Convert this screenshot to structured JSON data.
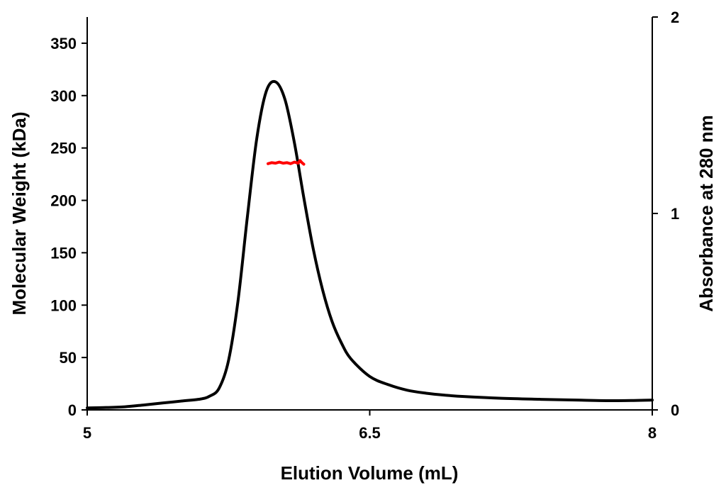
{
  "chart_data": {
    "type": "line",
    "xlabel": "Elution Volume (mL)",
    "ylabel_left": "Molecular Weight (kDa)",
    "ylabel_right": "Absorbance at 280 nm",
    "xlim": [
      5,
      8
    ],
    "ylim_left": [
      0,
      375
    ],
    "ylim_right": [
      0,
      2
    ],
    "x_ticks": [
      "5",
      "6.5",
      "8"
    ],
    "y_left_ticks": [
      "0",
      "50",
      "100",
      "150",
      "200",
      "250",
      "300",
      "350"
    ],
    "y_right_ticks": [
      "0",
      "1",
      "2"
    ],
    "grid": false,
    "legend": "none",
    "colors": {
      "absorbance": "#000000",
      "molecular_weight": "#ff0000"
    },
    "series": [
      {
        "axis": "right",
        "x": [
          5.0,
          5.1,
          5.2,
          5.3,
          5.4,
          5.5,
          5.6,
          5.65,
          5.7,
          5.75,
          5.8,
          5.85,
          5.9,
          5.95,
          6.0,
          6.05,
          6.1,
          6.15,
          6.2,
          6.25,
          6.3,
          6.35,
          6.4,
          6.5,
          6.6,
          6.7,
          6.8,
          6.9,
          7.0,
          7.2,
          7.4,
          7.6,
          7.8,
          8.0
        ],
        "y": [
          0.01,
          0.012,
          0.016,
          0.025,
          0.035,
          0.045,
          0.055,
          0.07,
          0.11,
          0.25,
          0.55,
          0.98,
          1.38,
          1.62,
          1.67,
          1.58,
          1.36,
          1.08,
          0.82,
          0.61,
          0.45,
          0.34,
          0.26,
          0.17,
          0.128,
          0.1,
          0.085,
          0.075,
          0.068,
          0.059,
          0.054,
          0.05,
          0.047,
          0.05
        ]
      },
      {
        "axis": "left",
        "x": [
          5.96,
          5.98,
          6.0,
          6.02,
          6.04,
          6.06,
          6.08,
          6.1,
          6.12,
          6.13,
          6.14,
          6.15
        ],
        "y": [
          235,
          236,
          235.5,
          236.5,
          235.5,
          236,
          235,
          236.5,
          235.5,
          238,
          236,
          234.5
        ]
      }
    ]
  }
}
